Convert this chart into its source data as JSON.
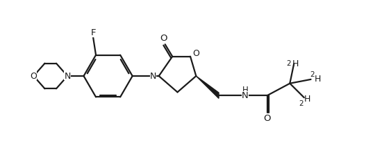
{
  "bg_color": "#ffffff",
  "line_color": "#1a1a1a",
  "line_width": 1.6,
  "figsize": [
    5.5,
    2.2
  ],
  "dpi": 100,
  "xlim": [
    0,
    11
  ],
  "ylim": [
    0,
    4.4
  ]
}
